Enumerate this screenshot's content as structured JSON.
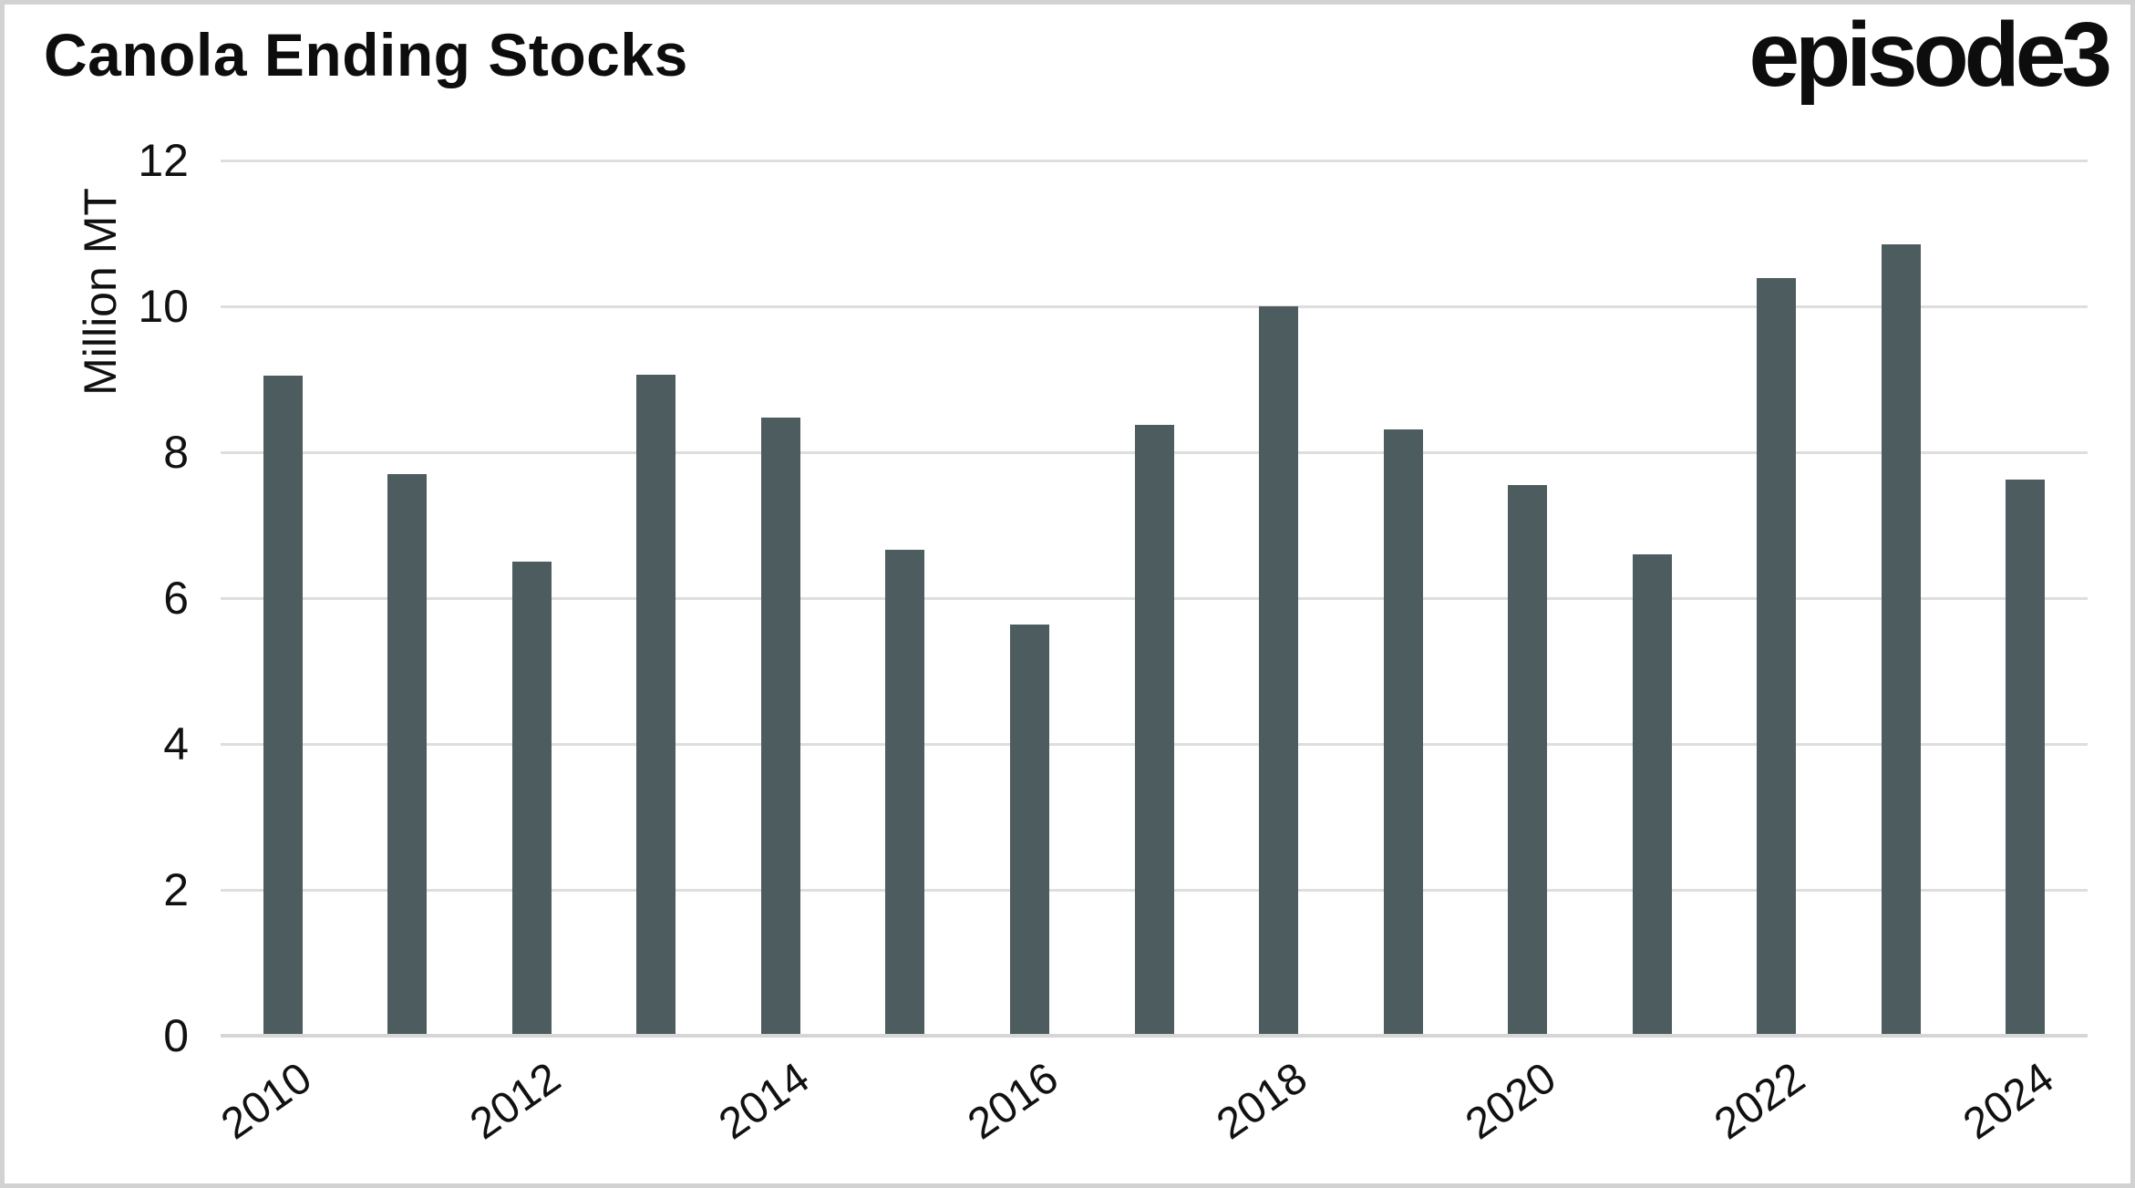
{
  "header": {
    "title": "Canola Ending Stocks",
    "logo": "episode3"
  },
  "chart_data": {
    "type": "bar",
    "title": "Canola Ending Stocks",
    "xlabel": "",
    "ylabel": "Million MT",
    "categories": [
      "2010",
      "2011",
      "2012",
      "2013",
      "2014",
      "2015",
      "2016",
      "2017",
      "2018",
      "2019",
      "2020",
      "2021",
      "2022",
      "2023",
      "2024"
    ],
    "values": [
      9.05,
      7.7,
      6.5,
      9.06,
      8.48,
      6.66,
      5.64,
      8.38,
      10.0,
      8.31,
      7.55,
      6.6,
      10.39,
      10.85,
      7.63
    ],
    "series_name": "Canola Ending Stocks (Million MT)",
    "x_tick_labels": [
      "2010",
      "2012",
      "2014",
      "2016",
      "2018",
      "2020",
      "2022",
      "2024"
    ],
    "x_tick_every": 2,
    "y_ticks": [
      "0",
      "2",
      "4",
      "6",
      "8",
      "10",
      "12"
    ],
    "ylim": [
      0,
      12
    ],
    "grid": true,
    "legend": "none",
    "x_label_rotation_deg": -35,
    "bar_color": "#4d5c5e",
    "gridline_color": "#dedede",
    "axis_line_color": "#d6d6d6",
    "text_color": "#111111",
    "title_color": "#0d0d0d",
    "background_color": "#ffffff",
    "frame_border_color": "#d2d2d2"
  }
}
